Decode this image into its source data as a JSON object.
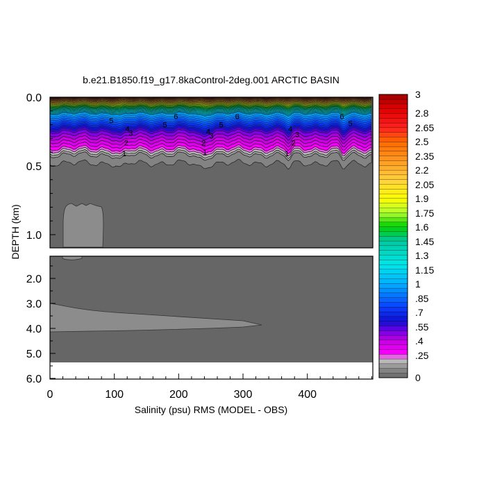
{
  "chart_data": {
    "type": "contour",
    "title": "b.e21.B1850.f19_g17.8kaControl-2deg.001 ARCTIC BASIN",
    "xlabel": "Salinity (psu) RMS (MODEL - OBS)",
    "ylabel": "DEPTH (km)",
    "x_ticks": [
      0,
      100,
      200,
      300,
      400
    ],
    "x_tick_labels": [
      "0",
      "100",
      "200",
      "300",
      "400"
    ],
    "xlim": [
      0,
      500
    ],
    "upper_panel": {
      "ylim": [
        0.0,
        1.1
      ],
      "y_ticks": [
        0.0,
        0.5,
        1.0
      ],
      "y_tick_labels": [
        "0.0",
        "0.5",
        "1.0"
      ]
    },
    "lower_panel": {
      "ylim": [
        1.0,
        6.0
      ],
      "y_ticks": [
        2.0,
        3.0,
        4.0,
        5.0,
        6.0
      ],
      "y_tick_labels": [
        "2.0",
        "3.0",
        "4.0",
        "5.0",
        "6.0"
      ]
    },
    "colorbar": {
      "min": 0,
      "max": 3,
      "labels": [
        "3",
        "2.8",
        "2.65",
        "2.5",
        "2.35",
        "2.2",
        "2.05",
        "1.9",
        "1.75",
        "1.6",
        "1.45",
        "1.3",
        "1.15",
        "1",
        ".85",
        ".7",
        ".55",
        ".4",
        ".25",
        "0"
      ],
      "stops": [
        {
          "value": 0.0,
          "color": "#666666"
        },
        {
          "value": 0.1,
          "color": "#8c8c8c"
        },
        {
          "value": 0.2,
          "color": "#c8c8c8"
        },
        {
          "value": 0.25,
          "color": "#ff00ff"
        },
        {
          "value": 0.4,
          "color": "#c000e0"
        },
        {
          "value": 0.5,
          "color": "#7000e8"
        },
        {
          "value": 0.6,
          "color": "#1010d0"
        },
        {
          "value": 0.75,
          "color": "#0a40ff"
        },
        {
          "value": 1.0,
          "color": "#00b0ff"
        },
        {
          "value": 1.2,
          "color": "#00e8e8"
        },
        {
          "value": 1.45,
          "color": "#00c8a0"
        },
        {
          "value": 1.6,
          "color": "#00d000"
        },
        {
          "value": 1.75,
          "color": "#b0ff30"
        },
        {
          "value": 1.9,
          "color": "#ffff00"
        },
        {
          "value": 2.1,
          "color": "#ffd040"
        },
        {
          "value": 2.3,
          "color": "#ff9a20"
        },
        {
          "value": 2.5,
          "color": "#ff6a00"
        },
        {
          "value": 2.65,
          "color": "#ff2020"
        },
        {
          "value": 2.85,
          "color": "#e00000"
        },
        {
          "value": 3.0,
          "color": "#a00000"
        }
      ]
    },
    "contour_labels": [
      {
        "text": "5",
        "x": 95,
        "depth": 0.17
      },
      {
        "text": "4",
        "x": 120,
        "depth": 0.23
      },
      {
        "text": "3",
        "x": 125,
        "depth": 0.26
      },
      {
        "text": "2",
        "x": 118,
        "depth": 0.33
      },
      {
        "text": "1",
        "x": 115,
        "depth": 0.41
      },
      {
        "text": "6",
        "x": 195,
        "depth": 0.14
      },
      {
        "text": "5",
        "x": 178,
        "depth": 0.2
      },
      {
        "text": "4",
        "x": 245,
        "depth": 0.25
      },
      {
        "text": "3",
        "x": 250,
        "depth": 0.28
      },
      {
        "text": "2",
        "x": 238,
        "depth": 0.33
      },
      {
        "text": "1",
        "x": 240,
        "depth": 0.4
      },
      {
        "text": "6",
        "x": 290,
        "depth": 0.14
      },
      {
        "text": "5",
        "x": 265,
        "depth": 0.2
      },
      {
        "text": "4",
        "x": 372,
        "depth": 0.23
      },
      {
        "text": "3",
        "x": 383,
        "depth": 0.27
      },
      {
        "text": "2",
        "x": 377,
        "depth": 0.33
      },
      {
        "text": "1",
        "x": 367,
        "depth": 0.41
      },
      {
        "text": "6",
        "x": 452,
        "depth": 0.14
      },
      {
        "text": "5",
        "x": 465,
        "depth": 0.19
      }
    ]
  }
}
